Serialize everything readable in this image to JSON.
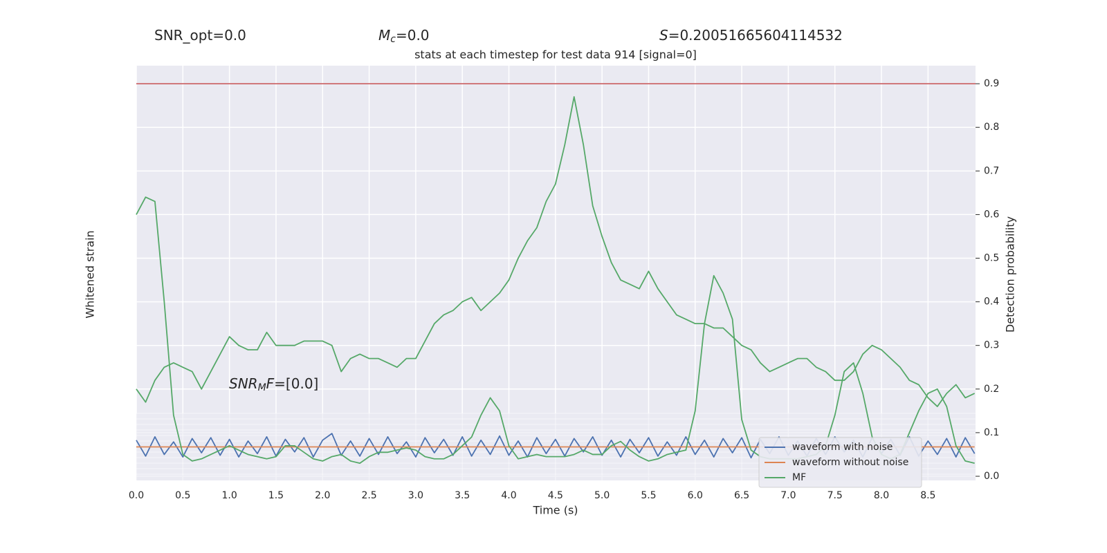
{
  "chart_data": {
    "type": "line",
    "title": "stats at each timestep for test data 914 [signal=0]",
    "annotations": [
      {
        "parts": [
          {
            "text": "SNR_opt=0.0"
          }
        ]
      },
      {
        "parts": [
          {
            "text": "M",
            "italic": true
          },
          {
            "text": "c",
            "italic": true,
            "sub": true
          },
          {
            "text": "=0.0"
          }
        ]
      },
      {
        "parts": [
          {
            "text": "S",
            "italic": true
          },
          {
            "text": "=0.20051665604114532"
          }
        ]
      },
      {
        "parts": [
          {
            "text": "SNR",
            "italic": true
          },
          {
            "text": "M",
            "italic": true,
            "sub": true
          },
          {
            "text": "F",
            "italic": true
          },
          {
            "text": "=[0.0]"
          }
        ]
      }
    ],
    "xlabel": "Time (s)",
    "ylabel": "Whitened strain",
    "y2label": "Detection probability",
    "xlim": [
      0,
      9.01
    ],
    "ylim": [
      -4,
      4
    ],
    "y2lim": [
      -0.0095,
      0.9414
    ],
    "xticks": [
      {
        "value": 0,
        "label": "0.0"
      },
      {
        "value": 0.5,
        "label": "0.5"
      },
      {
        "value": 1,
        "label": "1.0"
      },
      {
        "value": 1.5,
        "label": "1.5"
      },
      {
        "value": 2,
        "label": "2.0"
      },
      {
        "value": 2.5,
        "label": "2.5"
      },
      {
        "value": 3,
        "label": "3.0"
      },
      {
        "value": 3.5,
        "label": "3.5"
      },
      {
        "value": 4,
        "label": "4.0"
      },
      {
        "value": 4.5,
        "label": "4.5"
      },
      {
        "value": 5,
        "label": "5.0"
      },
      {
        "value": 5.5,
        "label": "5.5"
      },
      {
        "value": 6,
        "label": "6.0"
      },
      {
        "value": 6.5,
        "label": "6.5"
      },
      {
        "value": 7,
        "label": "7.0"
      },
      {
        "value": 7.5,
        "label": "7.5"
      },
      {
        "value": 8,
        "label": "8.0"
      },
      {
        "value": 8.5,
        "label": "8.5"
      }
    ],
    "y2ticks": [
      {
        "value": 0,
        "label": "0.0"
      },
      0.1,
      0.2,
      0.3,
      0.4,
      0.5,
      0.6,
      0.7,
      0.8,
      0.9
    ],
    "grid": true,
    "legend": "lower right",
    "hlines": [
      {
        "value": 0.9,
        "color": "#c44e52",
        "axis": "y2"
      }
    ],
    "x": [
      0,
      0.1,
      0.2,
      0.3,
      0.4,
      0.5,
      0.6,
      0.7,
      0.8,
      0.9,
      1,
      1.1,
      1.2,
      1.3,
      1.4,
      1.5,
      1.6,
      1.7,
      1.8,
      1.9,
      2,
      2.1,
      2.2,
      2.3,
      2.4,
      2.5,
      2.6,
      2.7,
      2.8,
      2.9,
      3,
      3.1,
      3.2,
      3.3,
      3.4,
      3.5,
      3.6,
      3.7,
      3.8,
      3.9,
      4,
      4.1,
      4.2,
      4.3,
      4.4,
      4.5,
      4.6,
      4.7,
      4.8,
      4.9,
      5,
      5.1,
      5.2,
      5.3,
      5.4,
      5.5,
      5.6,
      5.7,
      5.8,
      5.9,
      6,
      6.1,
      6.2,
      6.3,
      6.4,
      6.5,
      6.6,
      6.7,
      6.8,
      6.9,
      7,
      7.1,
      7.2,
      7.3,
      7.4,
      7.5,
      7.6,
      7.7,
      7.8,
      7.9,
      8,
      8.1,
      8.2,
      8.3,
      8.4,
      8.5,
      8.6,
      8.7,
      8.8,
      8.9,
      9
    ],
    "probability": {
      "color": "#55a868",
      "axis": "y2",
      "values": [
        0.2,
        0.17,
        0.22,
        0.25,
        0.26,
        0.25,
        0.24,
        0.2,
        0.24,
        0.28,
        0.32,
        0.3,
        0.29,
        0.29,
        0.33,
        0.3,
        0.3,
        0.3,
        0.31,
        0.31,
        0.31,
        0.3,
        0.24,
        0.27,
        0.28,
        0.27,
        0.27,
        0.26,
        0.25,
        0.27,
        0.27,
        0.31,
        0.35,
        0.37,
        0.38,
        0.4,
        0.41,
        0.38,
        0.4,
        0.42,
        0.45,
        0.5,
        0.54,
        0.57,
        0.63,
        0.67,
        0.76,
        0.87,
        0.76,
        0.62,
        0.55,
        0.49,
        0.45,
        0.44,
        0.43,
        0.47,
        0.43,
        0.4,
        0.37,
        0.36,
        0.35,
        0.35,
        0.34,
        0.34,
        0.32,
        0.3,
        0.29,
        0.26,
        0.24,
        0.25,
        0.26,
        0.27,
        0.27,
        0.25,
        0.24,
        0.22,
        0.22,
        0.24,
        0.28,
        0.3,
        0.29,
        0.27,
        0.25,
        0.22,
        0.21,
        0.18,
        0.16,
        0.19,
        0.21,
        0.18,
        0.19
      ]
    },
    "series": [
      {
        "name": "waveform with noise",
        "color": "#4c72b0",
        "axis": "y",
        "values": [
          0.8,
          -1.1,
          1.2,
          -0.9,
          0.6,
          -1.2,
          1.0,
          -0.7,
          1.1,
          -1.0,
          0.9,
          -1.2,
          0.7,
          -0.8,
          1.2,
          -1.1,
          0.9,
          -0.6,
          1.1,
          -1.2,
          0.8,
          1.6,
          -1.0,
          0.7,
          -1.1,
          1.0,
          -0.9,
          1.2,
          -0.8,
          0.6,
          -1.2,
          1.1,
          -0.7,
          0.9,
          -1.0,
          1.2,
          -1.1,
          0.8,
          -0.9,
          1.3,
          -1.0,
          0.7,
          -1.2,
          1.1,
          -0.8,
          0.9,
          -1.1,
          1.0,
          -0.6,
          1.2,
          -1.0,
          0.8,
          -1.2,
          0.9,
          -0.7,
          1.1,
          -1.1,
          0.6,
          -1.0,
          1.2,
          -0.9,
          0.8,
          -1.2,
          1.0,
          -0.7,
          1.1,
          -1.3,
          0.9,
          -0.8,
          1.2,
          -1.0,
          0.7,
          -1.1,
          1.0,
          -0.9,
          1.2,
          -0.6,
          0.8,
          -1.2,
          1.1,
          -0.8,
          0.9,
          -1.0,
          1.2,
          -1.1,
          0.7,
          -0.9,
          1.0,
          -1.2,
          1.1,
          -0.8
        ]
      },
      {
        "name": "waveform without noise",
        "color": "#dd8452",
        "axis": "y",
        "values": [
          0,
          0,
          0,
          0,
          0,
          0,
          0,
          0,
          0,
          0,
          0,
          0,
          0,
          0,
          0,
          0,
          0,
          0,
          0,
          0,
          0,
          0,
          0,
          0,
          0,
          0,
          0,
          0,
          0,
          0,
          0,
          0,
          0,
          0,
          0,
          0,
          0,
          0,
          0,
          0,
          0,
          0,
          0,
          0,
          0,
          0,
          0,
          0,
          0,
          0,
          0,
          0,
          0,
          0,
          0,
          0,
          0,
          0,
          0,
          0,
          0,
          0,
          0,
          0,
          0,
          0,
          0,
          0,
          0,
          0,
          0,
          0,
          0,
          0,
          0,
          0,
          0,
          0,
          0,
          0,
          0,
          0,
          0,
          0,
          0,
          0,
          0,
          0,
          0,
          0,
          0
        ]
      },
      {
        "name": "MF",
        "color": "#55a868",
        "axis": "y2",
        "values": [
          0.6,
          0.64,
          0.63,
          0.4,
          0.14,
          0.05,
          0.035,
          0.04,
          0.05,
          0.06,
          0.07,
          0.06,
          0.05,
          0.045,
          0.04,
          0.045,
          0.07,
          0.07,
          0.055,
          0.04,
          0.035,
          0.045,
          0.05,
          0.035,
          0.03,
          0.045,
          0.055,
          0.055,
          0.06,
          0.065,
          0.06,
          0.045,
          0.04,
          0.04,
          0.05,
          0.07,
          0.09,
          0.14,
          0.18,
          0.15,
          0.07,
          0.04,
          0.045,
          0.05,
          0.045,
          0.045,
          0.045,
          0.05,
          0.06,
          0.05,
          0.05,
          0.07,
          0.08,
          0.06,
          0.045,
          0.035,
          0.04,
          0.05,
          0.055,
          0.06,
          0.15,
          0.35,
          0.46,
          0.42,
          0.36,
          0.13,
          0.06,
          0.045,
          0.04,
          0.04,
          0.04,
          0.04,
          0.045,
          0.05,
          0.07,
          0.14,
          0.24,
          0.26,
          0.19,
          0.09,
          0.05,
          0.04,
          0.05,
          0.1,
          0.15,
          0.19,
          0.2,
          0.16,
          0.07,
          0.035,
          0.03
        ]
      }
    ]
  }
}
